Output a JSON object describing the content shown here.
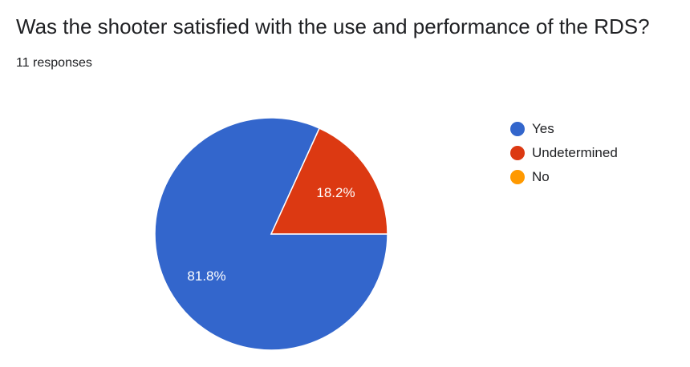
{
  "header": {
    "title": "Was the shooter satisfied with the use and performance of the RDS?",
    "responses": "11 responses"
  },
  "chart_data": {
    "type": "pie",
    "title": "Was the shooter satisfied with the use and performance of the RDS?",
    "categories": [
      "Yes",
      "Undetermined",
      "No"
    ],
    "values": [
      81.8,
      18.2,
      0
    ],
    "labels": [
      "81.8%",
      "18.2%",
      ""
    ],
    "colors": [
      "#3366cc",
      "#dc3912",
      "#ff9900"
    ],
    "legend": "right"
  }
}
